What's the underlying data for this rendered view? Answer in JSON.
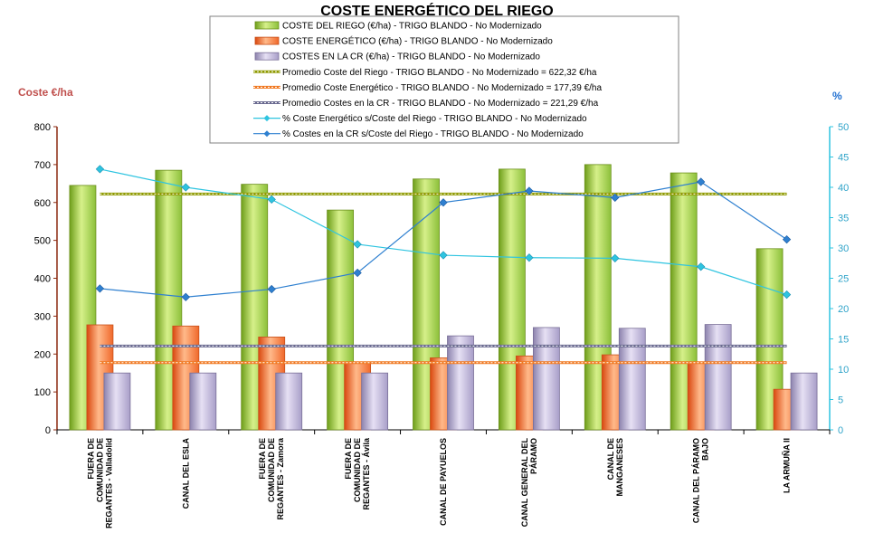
{
  "chart_data": {
    "type": "bar",
    "title": "COSTE ENERGÉTICO DEL RIEGO",
    "ylabel_left": "Coste €/ha",
    "ylabel_right": "%",
    "ylim_left": [
      0,
      800
    ],
    "ylim_right": [
      0,
      50
    ],
    "yticks_left": [
      0,
      100,
      200,
      300,
      400,
      500,
      600,
      700,
      800
    ],
    "yticks_right": [
      0,
      5,
      10,
      15,
      20,
      25,
      30,
      35,
      40,
      45,
      50
    ],
    "categories": [
      [
        "FUERA DE",
        "COMUNIDAD DE",
        "REGANTES - Valladolid"
      ],
      [
        "CANAL DEL ESLA"
      ],
      [
        "FUERA DE",
        "COMUNIDAD DE",
        "REGANTES - Zamora"
      ],
      [
        "FUERA DE",
        "COMUNIDAD DE",
        "REGANTES - Ávila"
      ],
      [
        "CANAL DE PAYUELOS"
      ],
      [
        "CANAL GENERAL DEL",
        "PÁRAMO"
      ],
      [
        "CANAL DE",
        "MANGANESES"
      ],
      [
        "CANAL DEL PÁRAMO",
        "BAJO"
      ],
      [
        "LA ARMUÑA II"
      ]
    ],
    "bar_series": [
      {
        "name": "COSTE DEL RIEGO (€/ha) - TRIGO BLANDO - No Modernizado",
        "color": "#9acd32",
        "values": [
          645,
          685,
          648,
          580,
          662,
          688,
          700,
          678,
          478
        ]
      },
      {
        "name": "COSTE ENERGÉTICO (€/ha) - TRIGO BLANDO - No Modernizado",
        "color": "#f26b2a",
        "values": [
          277,
          274,
          245,
          178,
          190,
          195,
          198,
          178,
          107
        ]
      },
      {
        "name": "COSTES EN LA CR (€/ha) - TRIGO BLANDO - No Modernizado",
        "color": "#b8aed0",
        "values": [
          150,
          150,
          150,
          150,
          248,
          270,
          268,
          278,
          150
        ]
      }
    ],
    "avg_lines": [
      {
        "name": "Promedio Coste del Riego - TRIGO BLANDO - No Modernizado = 622,32 €/ha",
        "value": 622.32,
        "color": "#8f9a00"
      },
      {
        "name": "Promedio Coste Energético - TRIGO BLANDO - No Modernizado = 177,39 €/ha",
        "value": 177.39,
        "color": "#f07820"
      },
      {
        "name": "Promedio Costes en la CR - TRIGO BLANDO - No Modernizado = 221,29 €/ha",
        "value": 221.29,
        "color": "#6a6a90"
      }
    ],
    "line_series": [
      {
        "name": "% Coste Energético s/Coste del Riego - TRIGO BLANDO - No Modernizado",
        "color": "#2ec4e0",
        "values": [
          43,
          40,
          38,
          30.6,
          28.8,
          28.4,
          28.3,
          26.9,
          22.3
        ]
      },
      {
        "name": "% Costes en la CR s/Coste del Riego - TRIGO BLANDO - No Modernizado",
        "color": "#2f80d0",
        "values": [
          23.3,
          21.9,
          23.2,
          25.9,
          37.5,
          39.4,
          38.3,
          40.9,
          31.4
        ]
      }
    ],
    "legend_position": "top"
  }
}
